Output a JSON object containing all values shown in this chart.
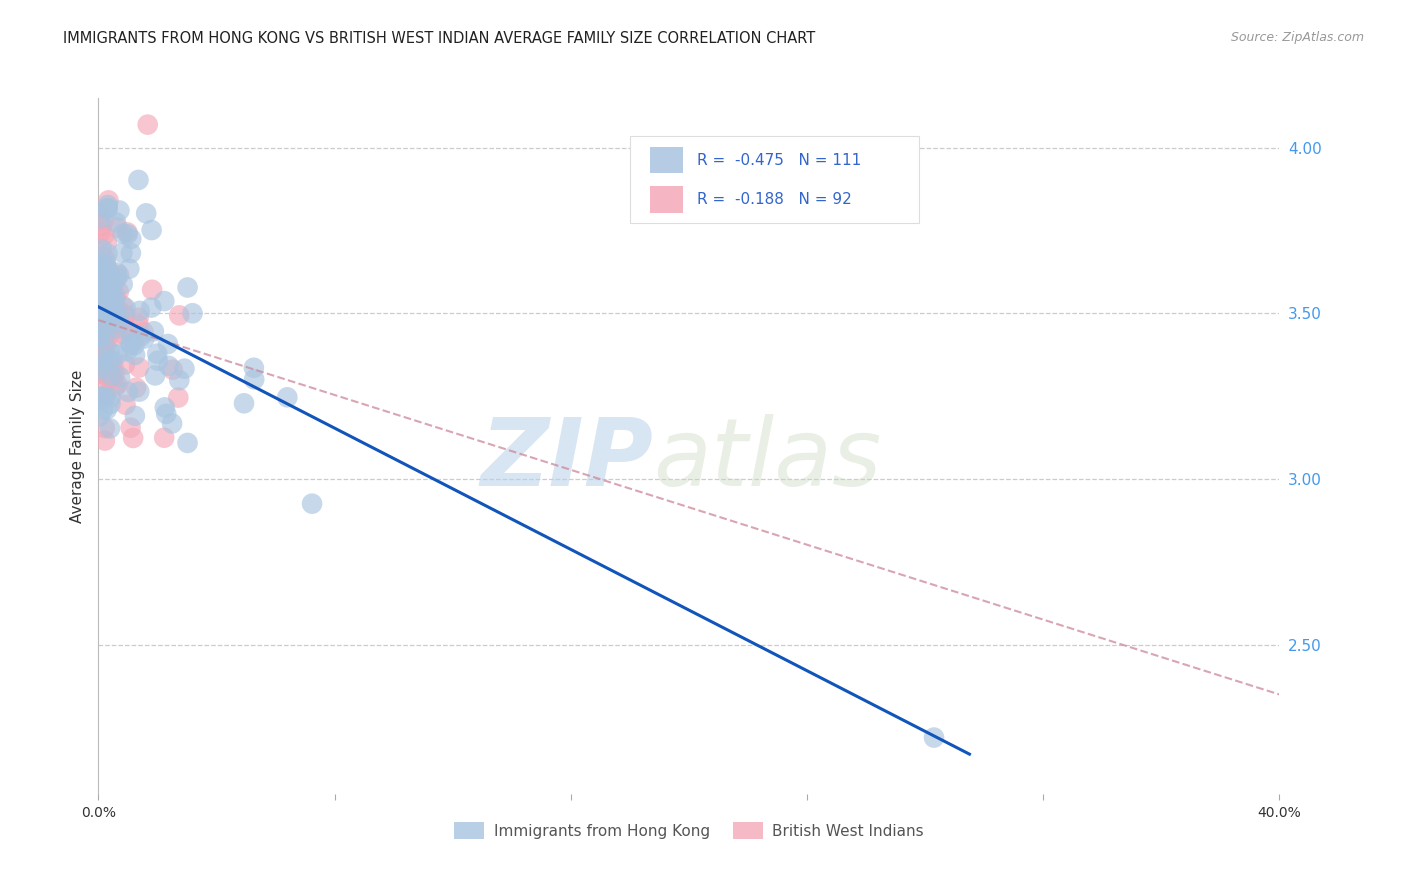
{
  "title": "IMMIGRANTS FROM HONG KONG VS BRITISH WEST INDIAN AVERAGE FAMILY SIZE CORRELATION CHART",
  "source": "Source: ZipAtlas.com",
  "ylabel": "Average Family Size",
  "right_yticks": [
    2.5,
    3.0,
    3.5,
    4.0
  ],
  "legend_r_hk": "-0.475",
  "legend_n_hk": "111",
  "legend_r_bwi": "-0.188",
  "legend_n_bwi": "92",
  "legend_label_hk": "Immigrants from Hong Kong",
  "legend_label_bwi": "British West Indians",
  "hk_color": "#A8C4E0",
  "bwi_color": "#F4A8B8",
  "hk_line_color": "#1155BB",
  "bwi_line_color": "#CC8899",
  "watermark_zip": "ZIP",
  "watermark_atlas": "atlas",
  "xlim": [
    0.0,
    0.4
  ],
  "ylim": [
    2.05,
    4.15
  ],
  "hk_line_x": [
    0.0,
    0.295
  ],
  "hk_line_y": [
    3.52,
    2.17
  ],
  "bwi_line_x": [
    0.0,
    0.4
  ],
  "bwi_line_y": [
    3.48,
    2.35
  ]
}
